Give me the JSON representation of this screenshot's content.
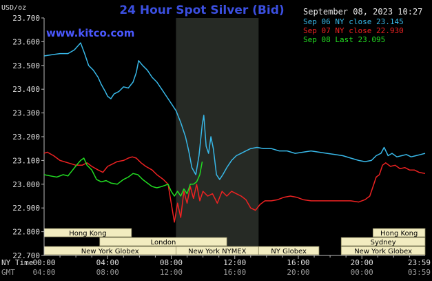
{
  "header": {
    "title": "24 Hour Spot Silver (Bid)",
    "brand": "www.kitco.com",
    "unit": "USD/oz",
    "date": "September 08, 2023 10:27"
  },
  "legend": [
    {
      "text": "Sep 06 NY close 23.145",
      "color": "#38b8e8"
    },
    {
      "text": "Sep 07 NY close 22.930",
      "color": "#ee2222"
    },
    {
      "text": "Sep 08 Last 23.095",
      "color": "#22dd22"
    }
  ],
  "x_axis": {
    "row1_label": "NY Time",
    "row2_label": "GMT",
    "ny_ticks": [
      "00:00",
      "04:00",
      "08:00",
      "12:00",
      "16:00",
      "20:00",
      "23:59"
    ],
    "gmt_ticks": [
      "04:00",
      "08:00",
      "12:00",
      "16:00",
      "20:00",
      "00:00",
      "03:59"
    ]
  },
  "sessions": [
    {
      "label": "Hong Kong",
      "start": 0,
      "end": 5.5,
      "row": 0
    },
    {
      "label": "Hong Kong",
      "start": 20.7,
      "end": 23.98,
      "row": 0
    },
    {
      "label": "London",
      "start": 3.5,
      "end": 11.5,
      "row": 1
    },
    {
      "label": "Sydney",
      "start": 18.7,
      "end": 23.98,
      "row": 1
    },
    {
      "label": "New York Globex",
      "start": 0,
      "end": 8.3,
      "row": 2
    },
    {
      "label": "New York NYMEX",
      "start": 8.3,
      "end": 13.5,
      "row": 2
    },
    {
      "label": "NY Globex",
      "start": 13.5,
      "end": 17.3,
      "row": 2
    },
    {
      "label": "New York Globex",
      "start": 18.7,
      "end": 23.98,
      "row": 2
    }
  ],
  "colors": {
    "background": "#000000",
    "highlight": "#262a25",
    "session_fill": "#f2ecc0",
    "title": "#3b4fe0",
    "brand": "#4a58ff"
  },
  "chart_data": {
    "type": "line",
    "title": "24 Hour Spot Silver (Bid)",
    "ylabel": "USD/oz",
    "xlabel": "NY Time",
    "xlim": [
      0,
      23.98
    ],
    "ylim": [
      22.7,
      23.7
    ],
    "yticks": [
      22.7,
      22.8,
      22.9,
      23.0,
      23.1,
      23.2,
      23.3,
      23.4,
      23.5,
      23.6,
      23.7
    ],
    "grid": false,
    "highlight_window": [
      8.3,
      13.5
    ],
    "legend_position": "top-right",
    "series": [
      {
        "name": "Sep 06 NY close 23.145",
        "color": "#38b8e8",
        "points": [
          [
            0,
            23.54
          ],
          [
            0.5,
            23.545
          ],
          [
            1.0,
            23.55
          ],
          [
            1.5,
            23.55
          ],
          [
            1.9,
            23.565
          ],
          [
            2.3,
            23.595
          ],
          [
            2.55,
            23.55
          ],
          [
            2.8,
            23.5
          ],
          [
            3.1,
            23.48
          ],
          [
            3.4,
            23.45
          ],
          [
            3.6,
            23.42
          ],
          [
            3.85,
            23.39
          ],
          [
            4.0,
            23.37
          ],
          [
            4.2,
            23.36
          ],
          [
            4.4,
            23.38
          ],
          [
            4.7,
            23.39
          ],
          [
            5.0,
            23.41
          ],
          [
            5.3,
            23.405
          ],
          [
            5.6,
            23.43
          ],
          [
            5.8,
            23.47
          ],
          [
            5.95,
            23.52
          ],
          [
            6.2,
            23.5
          ],
          [
            6.5,
            23.48
          ],
          [
            6.8,
            23.45
          ],
          [
            7.1,
            23.43
          ],
          [
            7.4,
            23.4
          ],
          [
            7.7,
            23.37
          ],
          [
            8.0,
            23.34
          ],
          [
            8.3,
            23.31
          ],
          [
            8.6,
            23.26
          ],
          [
            8.9,
            23.2
          ],
          [
            9.1,
            23.14
          ],
          [
            9.3,
            23.07
          ],
          [
            9.55,
            23.04
          ],
          [
            9.75,
            23.12
          ],
          [
            9.95,
            23.25
          ],
          [
            10.05,
            23.29
          ],
          [
            10.2,
            23.16
          ],
          [
            10.35,
            23.13
          ],
          [
            10.5,
            23.2
          ],
          [
            10.65,
            23.15
          ],
          [
            10.85,
            23.04
          ],
          [
            11.05,
            23.02
          ],
          [
            11.25,
            23.04
          ],
          [
            11.5,
            23.07
          ],
          [
            11.8,
            23.1
          ],
          [
            12.1,
            23.12
          ],
          [
            12.4,
            23.13
          ],
          [
            12.7,
            23.14
          ],
          [
            13.0,
            23.15
          ],
          [
            13.4,
            23.155
          ],
          [
            13.8,
            23.15
          ],
          [
            14.3,
            23.15
          ],
          [
            14.8,
            23.14
          ],
          [
            15.3,
            23.14
          ],
          [
            15.8,
            23.13
          ],
          [
            16.3,
            23.135
          ],
          [
            16.8,
            23.14
          ],
          [
            17.3,
            23.135
          ],
          [
            17.8,
            23.13
          ],
          [
            18.3,
            23.125
          ],
          [
            18.8,
            23.12
          ],
          [
            19.3,
            23.11
          ],
          [
            19.8,
            23.1
          ],
          [
            20.2,
            23.095
          ],
          [
            20.6,
            23.1
          ],
          [
            20.9,
            23.12
          ],
          [
            21.2,
            23.13
          ],
          [
            21.4,
            23.155
          ],
          [
            21.65,
            23.12
          ],
          [
            21.9,
            23.13
          ],
          [
            22.2,
            23.115
          ],
          [
            22.5,
            23.12
          ],
          [
            22.8,
            23.125
          ],
          [
            23.1,
            23.115
          ],
          [
            23.4,
            23.12
          ],
          [
            23.7,
            23.125
          ],
          [
            23.98,
            23.13
          ]
        ]
      },
      {
        "name": "Sep 07 NY close 22.930",
        "color": "#ee2222",
        "points": [
          [
            0,
            23.13
          ],
          [
            0.2,
            23.135
          ],
          [
            0.6,
            23.12
          ],
          [
            1.0,
            23.1
          ],
          [
            1.5,
            23.09
          ],
          [
            2.0,
            23.08
          ],
          [
            2.4,
            23.08
          ],
          [
            2.7,
            23.09
          ],
          [
            3.0,
            23.075
          ],
          [
            3.4,
            23.06
          ],
          [
            3.7,
            23.05
          ],
          [
            4.0,
            23.075
          ],
          [
            4.3,
            23.085
          ],
          [
            4.6,
            23.095
          ],
          [
            5.0,
            23.1
          ],
          [
            5.3,
            23.11
          ],
          [
            5.55,
            23.115
          ],
          [
            5.8,
            23.11
          ],
          [
            6.1,
            23.09
          ],
          [
            6.4,
            23.075
          ],
          [
            6.8,
            23.06
          ],
          [
            7.1,
            23.04
          ],
          [
            7.5,
            23.02
          ],
          [
            7.8,
            23.0
          ],
          [
            8.0,
            22.92
          ],
          [
            8.2,
            22.84
          ],
          [
            8.4,
            22.92
          ],
          [
            8.6,
            22.86
          ],
          [
            8.8,
            22.97
          ],
          [
            9.0,
            22.92
          ],
          [
            9.2,
            22.99
          ],
          [
            9.4,
            22.94
          ],
          [
            9.6,
            23.0
          ],
          [
            9.8,
            22.93
          ],
          [
            10.0,
            22.97
          ],
          [
            10.3,
            22.95
          ],
          [
            10.6,
            22.96
          ],
          [
            10.9,
            22.92
          ],
          [
            11.2,
            22.97
          ],
          [
            11.5,
            22.95
          ],
          [
            11.8,
            22.97
          ],
          [
            12.1,
            22.96
          ],
          [
            12.4,
            22.95
          ],
          [
            12.7,
            22.935
          ],
          [
            13.0,
            22.9
          ],
          [
            13.3,
            22.89
          ],
          [
            13.6,
            22.915
          ],
          [
            13.9,
            22.93
          ],
          [
            14.3,
            22.93
          ],
          [
            14.7,
            22.935
          ],
          [
            15.1,
            22.945
          ],
          [
            15.5,
            22.95
          ],
          [
            15.9,
            22.945
          ],
          [
            16.3,
            22.935
          ],
          [
            16.8,
            22.93
          ],
          [
            17.3,
            22.93
          ],
          [
            17.8,
            22.93
          ],
          [
            18.3,
            22.93
          ],
          [
            18.8,
            22.93
          ],
          [
            19.3,
            22.93
          ],
          [
            19.8,
            22.925
          ],
          [
            20.2,
            22.935
          ],
          [
            20.5,
            22.95
          ],
          [
            20.7,
            22.99
          ],
          [
            20.9,
            23.03
          ],
          [
            21.1,
            23.04
          ],
          [
            21.3,
            23.08
          ],
          [
            21.5,
            23.09
          ],
          [
            21.8,
            23.075
          ],
          [
            22.1,
            23.08
          ],
          [
            22.4,
            23.065
          ],
          [
            22.7,
            23.07
          ],
          [
            23.0,
            23.06
          ],
          [
            23.3,
            23.06
          ],
          [
            23.6,
            23.05
          ],
          [
            23.98,
            23.045
          ]
        ]
      },
      {
        "name": "Sep 08 Last 23.095",
        "color": "#22dd22",
        "points": [
          [
            0,
            23.04
          ],
          [
            0.4,
            23.035
          ],
          [
            0.8,
            23.03
          ],
          [
            1.2,
            23.04
          ],
          [
            1.5,
            23.035
          ],
          [
            1.8,
            23.06
          ],
          [
            2.1,
            23.085
          ],
          [
            2.3,
            23.1
          ],
          [
            2.5,
            23.11
          ],
          [
            2.7,
            23.08
          ],
          [
            3.0,
            23.06
          ],
          [
            3.3,
            23.02
          ],
          [
            3.6,
            23.01
          ],
          [
            3.9,
            23.015
          ],
          [
            4.2,
            23.005
          ],
          [
            4.6,
            23.0
          ],
          [
            5.0,
            23.02
          ],
          [
            5.3,
            23.03
          ],
          [
            5.6,
            23.045
          ],
          [
            5.9,
            23.04
          ],
          [
            6.2,
            23.02
          ],
          [
            6.5,
            23.005
          ],
          [
            6.8,
            22.99
          ],
          [
            7.1,
            22.985
          ],
          [
            7.4,
            22.99
          ],
          [
            7.8,
            23.0
          ],
          [
            8.0,
            22.97
          ],
          [
            8.2,
            22.95
          ],
          [
            8.4,
            22.97
          ],
          [
            8.6,
            22.95
          ],
          [
            8.8,
            22.98
          ],
          [
            9.0,
            22.96
          ],
          [
            9.2,
            23.0
          ],
          [
            9.4,
            23.0
          ],
          [
            9.6,
            23.01
          ],
          [
            9.8,
            23.04
          ],
          [
            9.95,
            23.095
          ]
        ]
      }
    ]
  }
}
